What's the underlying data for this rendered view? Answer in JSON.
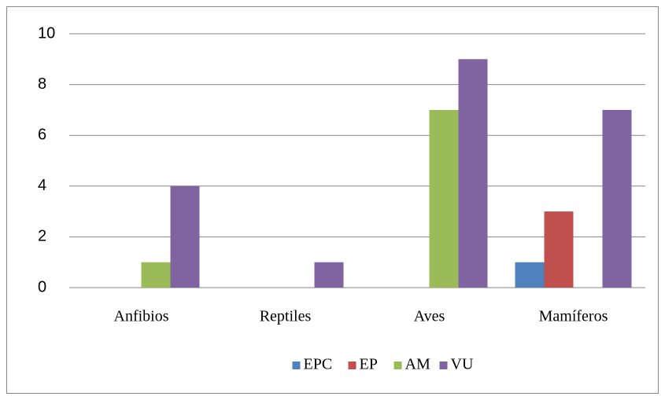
{
  "chart_data": {
    "type": "bar",
    "categories": [
      "Anfibios",
      "Reptiles",
      "Aves",
      "Mamíferos"
    ],
    "series": [
      {
        "name": "EPC",
        "color": "#4f81bd",
        "values": [
          0,
          0,
          0,
          1
        ]
      },
      {
        "name": "EP",
        "color": "#c0504d",
        "values": [
          0,
          0,
          0,
          3
        ]
      },
      {
        "name": "AM",
        "color": "#9bbb59",
        "values": [
          1,
          0,
          7,
          0
        ]
      },
      {
        "name": "VU",
        "color": "#8064a2",
        "values": [
          4,
          1,
          9,
          7
        ]
      }
    ],
    "ylim": [
      0,
      10
    ],
    "yticks": [
      0,
      2,
      4,
      6,
      8,
      10
    ],
    "grid": true,
    "legend": "bottom"
  }
}
